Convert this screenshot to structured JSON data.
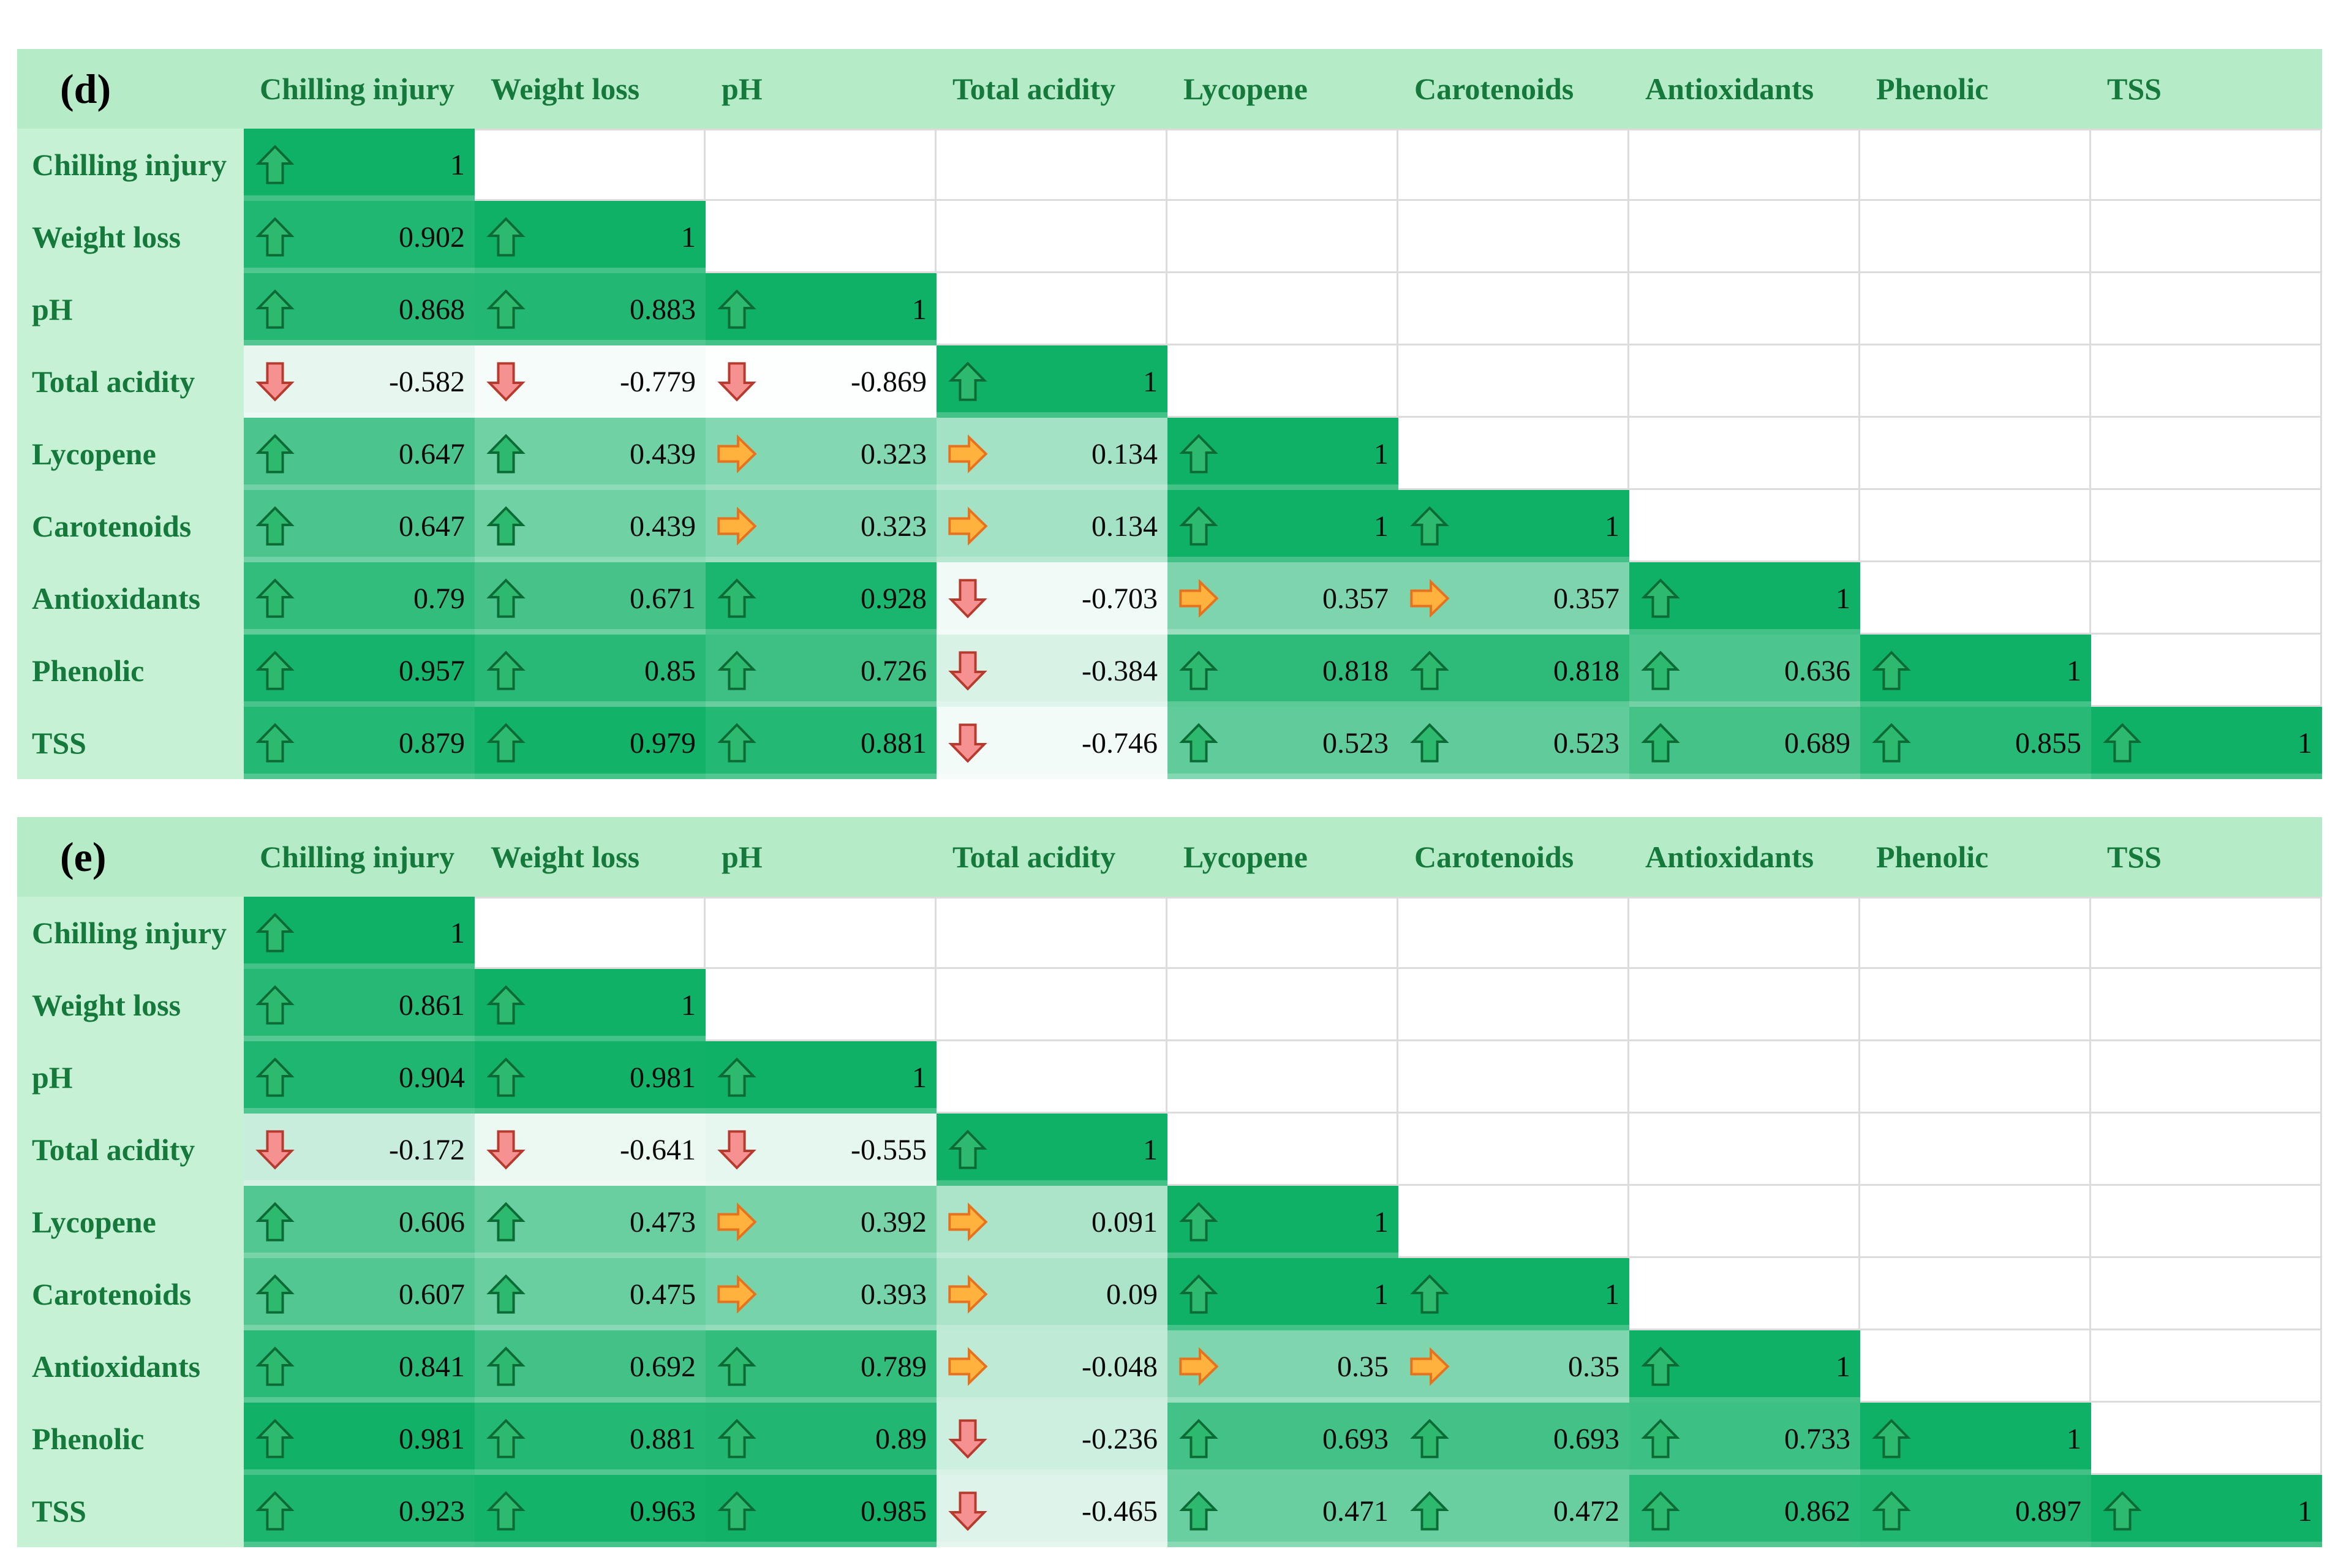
{
  "figure": {
    "panel_labels": [
      "(d)",
      "(e)"
    ]
  },
  "colors": {
    "accent": "#0eb166",
    "header_bg": "#b5ecc7",
    "label_bg": "#c7f1d5",
    "header_text": "#15793c",
    "value_text": "#0a0a0a",
    "panel_label_text": "#000000",
    "grid_line": "#dcdcdc",
    "arrow_up_fill": "#2db96e",
    "arrow_up_stroke": "#0c6b35",
    "arrow_down_fill": "#f59191",
    "arrow_down_stroke": "#b73a2e",
    "arrow_right_fill": "#ffb23e",
    "arrow_right_stroke": "#e8711d"
  },
  "chart_data": [
    {
      "type": "heatmap",
      "panel": "(d)",
      "legend_note": "lower-triangle correlation matrix; green up = positive, red down = negative, orange right = weak",
      "columns": [
        "Chilling injury",
        "Weight loss",
        "pH",
        "Total acidity",
        "Lycopene",
        "Carotenoids",
        "Antioxidants",
        "Phenolic",
        "TSS"
      ],
      "rows": [
        {
          "label": "Chilling injury",
          "cells": [
            {
              "arrow": "up",
              "value": 1,
              "text": "1"
            }
          ]
        },
        {
          "label": "Weight loss",
          "cells": [
            {
              "arrow": "up",
              "value": 0.902,
              "text": "0.902"
            },
            {
              "arrow": "up",
              "value": 1,
              "text": "1"
            }
          ]
        },
        {
          "label": "pH",
          "cells": [
            {
              "arrow": "up",
              "value": 0.868,
              "text": "0.868"
            },
            {
              "arrow": "up",
              "value": 0.883,
              "text": "0.883"
            },
            {
              "arrow": "up",
              "value": 1,
              "text": "1"
            }
          ]
        },
        {
          "label": "Total acidity",
          "cells": [
            {
              "arrow": "down",
              "value": -0.582,
              "text": "-0.582"
            },
            {
              "arrow": "down",
              "value": -0.779,
              "text": "-0.779"
            },
            {
              "arrow": "down",
              "value": -0.869,
              "text": "-0.869"
            },
            {
              "arrow": "up",
              "value": 1,
              "text": "1"
            }
          ]
        },
        {
          "label": "Lycopene",
          "cells": [
            {
              "arrow": "up",
              "value": 0.647,
              "text": "0.647"
            },
            {
              "arrow": "up",
              "value": 0.439,
              "text": "0.439"
            },
            {
              "arrow": "right",
              "value": 0.323,
              "text": "0.323"
            },
            {
              "arrow": "right",
              "value": 0.134,
              "text": "0.134"
            },
            {
              "arrow": "up",
              "value": 1,
              "text": "1"
            }
          ]
        },
        {
          "label": "Carotenoids",
          "cells": [
            {
              "arrow": "up",
              "value": 0.647,
              "text": "0.647"
            },
            {
              "arrow": "up",
              "value": 0.439,
              "text": "0.439"
            },
            {
              "arrow": "right",
              "value": 0.323,
              "text": "0.323"
            },
            {
              "arrow": "right",
              "value": 0.134,
              "text": "0.134"
            },
            {
              "arrow": "up",
              "value": 1,
              "text": "1"
            },
            {
              "arrow": "up",
              "value": 1,
              "text": "1"
            }
          ]
        },
        {
          "label": "Antioxidants",
          "cells": [
            {
              "arrow": "up",
              "value": 0.79,
              "text": "0.79"
            },
            {
              "arrow": "up",
              "value": 0.671,
              "text": "0.671"
            },
            {
              "arrow": "up",
              "value": 0.928,
              "text": "0.928"
            },
            {
              "arrow": "down",
              "value": -0.703,
              "text": "-0.703"
            },
            {
              "arrow": "right",
              "value": 0.357,
              "text": "0.357"
            },
            {
              "arrow": "right",
              "value": 0.357,
              "text": "0.357"
            },
            {
              "arrow": "up",
              "value": 1,
              "text": "1"
            }
          ]
        },
        {
          "label": "Phenolic",
          "cells": [
            {
              "arrow": "up",
              "value": 0.957,
              "text": "0.957"
            },
            {
              "arrow": "up",
              "value": 0.85,
              "text": "0.85"
            },
            {
              "arrow": "up",
              "value": 0.726,
              "text": "0.726"
            },
            {
              "arrow": "down",
              "value": -0.384,
              "text": "-0.384"
            },
            {
              "arrow": "up",
              "value": 0.818,
              "text": "0.818"
            },
            {
              "arrow": "up",
              "value": 0.818,
              "text": "0.818"
            },
            {
              "arrow": "up",
              "value": 0.636,
              "text": "0.636"
            },
            {
              "arrow": "up",
              "value": 1,
              "text": "1"
            }
          ]
        },
        {
          "label": "TSS",
          "cells": [
            {
              "arrow": "up",
              "value": 0.879,
              "text": "0.879"
            },
            {
              "arrow": "up",
              "value": 0.979,
              "text": "0.979"
            },
            {
              "arrow": "up",
              "value": 0.881,
              "text": "0.881"
            },
            {
              "arrow": "down",
              "value": -0.746,
              "text": "-0.746"
            },
            {
              "arrow": "up",
              "value": 0.523,
              "text": "0.523"
            },
            {
              "arrow": "up",
              "value": 0.523,
              "text": "0.523"
            },
            {
              "arrow": "up",
              "value": 0.689,
              "text": "0.689"
            },
            {
              "arrow": "up",
              "value": 0.855,
              "text": "0.855"
            },
            {
              "arrow": "up",
              "value": 1,
              "text": "1"
            }
          ]
        }
      ]
    },
    {
      "type": "heatmap",
      "panel": "(e)",
      "legend_note": "lower-triangle correlation matrix; green up = positive, red down = negative, orange right = weak",
      "columns": [
        "Chilling injury",
        "Weight loss",
        "pH",
        "Total acidity",
        "Lycopene",
        "Carotenoids",
        "Antioxidants",
        "Phenolic",
        "TSS"
      ],
      "rows": [
        {
          "label": "Chilling injury",
          "cells": [
            {
              "arrow": "up",
              "value": 1,
              "text": "1"
            }
          ]
        },
        {
          "label": "Weight loss",
          "cells": [
            {
              "arrow": "up",
              "value": 0.861,
              "text": "0.861"
            },
            {
              "arrow": "up",
              "value": 1,
              "text": "1"
            }
          ]
        },
        {
          "label": "pH",
          "cells": [
            {
              "arrow": "up",
              "value": 0.904,
              "text": "0.904"
            },
            {
              "arrow": "up",
              "value": 0.981,
              "text": "0.981"
            },
            {
              "arrow": "up",
              "value": 1,
              "text": "1"
            }
          ]
        },
        {
          "label": "Total acidity",
          "cells": [
            {
              "arrow": "down",
              "value": -0.172,
              "text": "-0.172"
            },
            {
              "arrow": "down",
              "value": -0.641,
              "text": "-0.641"
            },
            {
              "arrow": "down",
              "value": -0.555,
              "text": "-0.555"
            },
            {
              "arrow": "up",
              "value": 1,
              "text": "1"
            }
          ]
        },
        {
          "label": "Lycopene",
          "cells": [
            {
              "arrow": "up",
              "value": 0.606,
              "text": "0.606"
            },
            {
              "arrow": "up",
              "value": 0.473,
              "text": "0.473"
            },
            {
              "arrow": "right",
              "value": 0.392,
              "text": "0.392"
            },
            {
              "arrow": "right",
              "value": 0.091,
              "text": "0.091"
            },
            {
              "arrow": "up",
              "value": 1,
              "text": "1"
            }
          ]
        },
        {
          "label": "Carotenoids",
          "cells": [
            {
              "arrow": "up",
              "value": 0.607,
              "text": "0.607"
            },
            {
              "arrow": "up",
              "value": 0.475,
              "text": "0.475"
            },
            {
              "arrow": "right",
              "value": 0.393,
              "text": "0.393"
            },
            {
              "arrow": "right",
              "value": 0.09,
              "text": "0.09"
            },
            {
              "arrow": "up",
              "value": 1,
              "text": "1"
            },
            {
              "arrow": "up",
              "value": 1,
              "text": "1"
            }
          ]
        },
        {
          "label": "Antioxidants",
          "cells": [
            {
              "arrow": "up",
              "value": 0.841,
              "text": "0.841"
            },
            {
              "arrow": "up",
              "value": 0.692,
              "text": "0.692"
            },
            {
              "arrow": "up",
              "value": 0.789,
              "text": "0.789"
            },
            {
              "arrow": "right",
              "value": -0.048,
              "text": "-0.048"
            },
            {
              "arrow": "right",
              "value": 0.35,
              "text": "0.35"
            },
            {
              "arrow": "right",
              "value": 0.35,
              "text": "0.35"
            },
            {
              "arrow": "up",
              "value": 1,
              "text": "1"
            }
          ]
        },
        {
          "label": "Phenolic",
          "cells": [
            {
              "arrow": "up",
              "value": 0.981,
              "text": "0.981"
            },
            {
              "arrow": "up",
              "value": 0.881,
              "text": "0.881"
            },
            {
              "arrow": "up",
              "value": 0.89,
              "text": "0.89"
            },
            {
              "arrow": "down",
              "value": -0.236,
              "text": "-0.236"
            },
            {
              "arrow": "up",
              "value": 0.693,
              "text": "0.693"
            },
            {
              "arrow": "up",
              "value": 0.693,
              "text": "0.693"
            },
            {
              "arrow": "up",
              "value": 0.733,
              "text": "0.733"
            },
            {
              "arrow": "up",
              "value": 1,
              "text": "1"
            }
          ]
        },
        {
          "label": "TSS",
          "cells": [
            {
              "arrow": "up",
              "value": 0.923,
              "text": "0.923"
            },
            {
              "arrow": "up",
              "value": 0.963,
              "text": "0.963"
            },
            {
              "arrow": "up",
              "value": 0.985,
              "text": "0.985"
            },
            {
              "arrow": "down",
              "value": -0.465,
              "text": "-0.465"
            },
            {
              "arrow": "up",
              "value": 0.471,
              "text": "0.471"
            },
            {
              "arrow": "up",
              "value": 0.472,
              "text": "0.472"
            },
            {
              "arrow": "up",
              "value": 0.862,
              "text": "0.862"
            },
            {
              "arrow": "up",
              "value": 0.897,
              "text": "0.897"
            },
            {
              "arrow": "up",
              "value": 1,
              "text": "1"
            }
          ]
        }
      ]
    }
  ]
}
